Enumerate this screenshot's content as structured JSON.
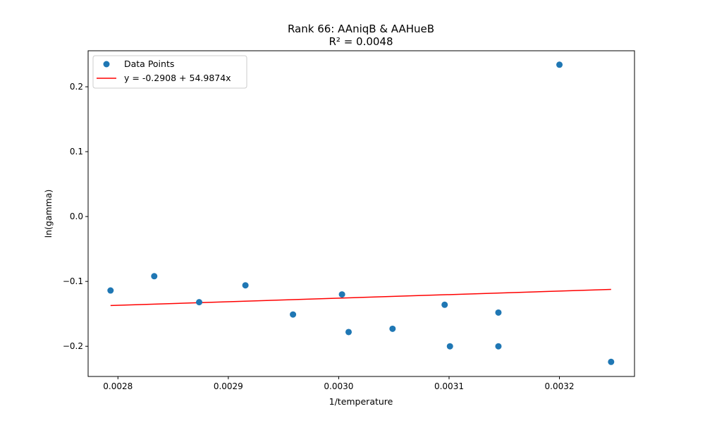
{
  "chart_data": {
    "type": "scatter",
    "title": "Rank 66: AAniqB & AAHueB",
    "subtitle": "R² = 0.0048",
    "xlabel": "1/temperature",
    "ylabel": "ln(gamma)",
    "xlim": [
      0.002773,
      0.003268
    ],
    "ylim": [
      -0.2465,
      0.2555
    ],
    "xticks": [
      0.0028,
      0.0029,
      0.003,
      0.0031,
      0.0032
    ],
    "xtick_labels": [
      "0.0028",
      "0.0029",
      "0.0030",
      "0.0031",
      "0.0032"
    ],
    "yticks": [
      -0.2,
      -0.1,
      0.0,
      0.1,
      0.2
    ],
    "ytick_labels": [
      "−0.2",
      "−0.1",
      "0.0",
      "0.1",
      "0.2"
    ],
    "grid": false,
    "legend_position": "top-left",
    "series": [
      {
        "name": "Data Points",
        "kind": "scatter",
        "color": "#1f77b4",
        "points": [
          {
            "x": 0.0027933,
            "y": -0.114
          },
          {
            "x": 0.0028329,
            "y": -0.092
          },
          {
            "x": 0.0028736,
            "y": -0.132
          },
          {
            "x": 0.0029155,
            "y": -0.106
          },
          {
            "x": 0.0029586,
            "y": -0.151
          },
          {
            "x": 0.003003,
            "y": -0.12
          },
          {
            "x": 0.003009,
            "y": -0.178
          },
          {
            "x": 0.0030488,
            "y": -0.173
          },
          {
            "x": 0.003096,
            "y": -0.136
          },
          {
            "x": 0.0031008,
            "y": -0.2
          },
          {
            "x": 0.0031447,
            "y": -0.148
          },
          {
            "x": 0.0031447,
            "y": -0.2
          },
          {
            "x": 0.0032,
            "y": 0.234
          },
          {
            "x": 0.0032468,
            "y": -0.224
          }
        ]
      },
      {
        "name": "y = -0.2908 + 54.9874x",
        "kind": "line",
        "color": "#ff0000",
        "intercept": -0.2908,
        "slope": 54.9874,
        "x_range": [
          0.0027933,
          0.0032468
        ]
      }
    ]
  }
}
